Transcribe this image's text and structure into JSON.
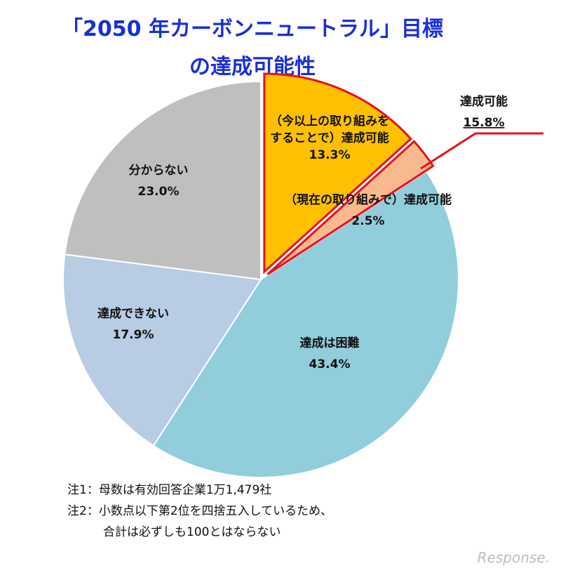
{
  "title_line1": "「2050 年カーボンニュートラル」目標",
  "title_line2": "の達成可能性",
  "chart_data": {
    "type": "pie",
    "title": "「2050 年カーボンニュートラル」目標の達成可能性",
    "start": "12 o'clock, clockwise",
    "slices": [
      {
        "label_lines": [
          "（今以上の取り組みを",
          "することで）達成可能"
        ],
        "value": 13.3,
        "value_label": "13.3%",
        "color": "#ffc000",
        "highlighted": true
      },
      {
        "label_lines": [
          "（現在の取り組みで）達成可能"
        ],
        "value": 2.5,
        "value_label": "2.5%",
        "color": "#f8b98f",
        "highlighted": true
      },
      {
        "label_lines": [
          "達成は困難"
        ],
        "value": 43.4,
        "value_label": "43.4%",
        "color": "#92cddc",
        "highlighted": false
      },
      {
        "label_lines": [
          "達成できない"
        ],
        "value": 17.9,
        "value_label": "17.9%",
        "color": "#b8cce4",
        "highlighted": false
      },
      {
        "label_lines": [
          "分からない"
        ],
        "value": 23.0,
        "value_label": "23.0%",
        "color": "#bfbfbf",
        "highlighted": false
      }
    ],
    "annotation": {
      "label": "達成可能",
      "value_label": "15.8%",
      "color": "#e8111b"
    }
  },
  "notes": [
    "注1：母数は有効回答企業1万1,479社",
    "注2：小数点以下第2位を四捨五入しているため、",
    "合計は必ずしも100とはならない"
  ],
  "watermark": "Response."
}
